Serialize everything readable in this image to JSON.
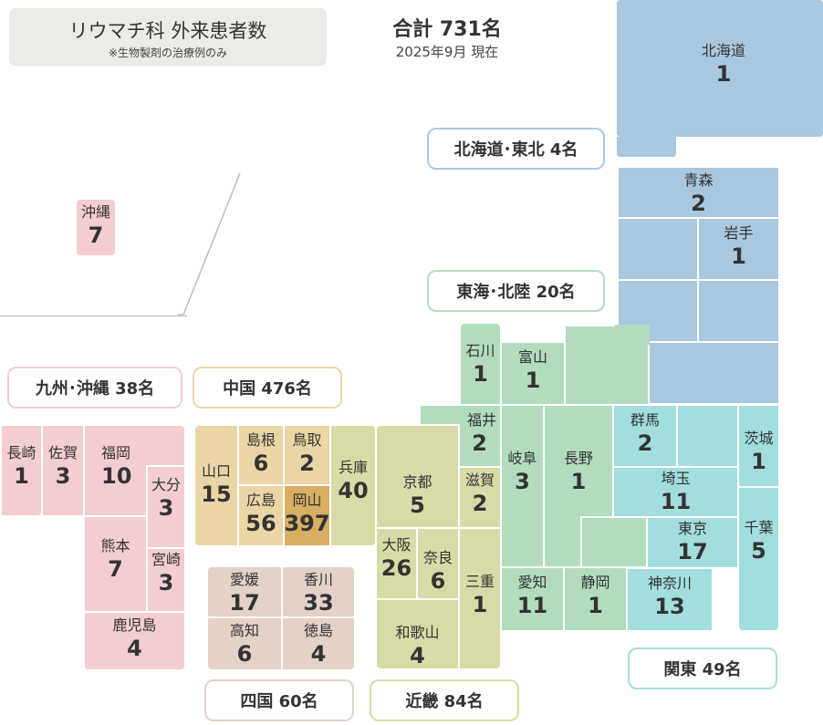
{
  "header": {
    "title": "リウマチ科 外来患者数",
    "note": "※生物製剤の治療例のみ",
    "total": "合計 731名",
    "as_of": "2025年9月 現在"
  },
  "colors": {
    "hokkaido_tohoku": "#a9c8df",
    "kanto": "#a3dedf",
    "tokai_hokuriku": "#b3dcbf",
    "kinki": "#d9dba7",
    "chugoku": "#ead5a5",
    "okayama": "#d7ae62",
    "shikoku": "#e4d1c8",
    "kyushu_okinawa": "#f3cdd0"
  },
  "regions": {
    "hokkaido_tohoku": "北海道･東北 4名",
    "tokai_hokuriku": "東海･北陸 20名",
    "kyushu_okinawa": "九州･沖縄 38名",
    "chugoku": "中国 476名",
    "shikoku": "四国 60名",
    "kinki": "近畿 84名",
    "kanto": "関東 49名"
  },
  "prefectures": {
    "hokkaido": {
      "name": "北海道",
      "count": "1"
    },
    "aomori": {
      "name": "青森",
      "count": "2"
    },
    "iwate": {
      "name": "岩手",
      "count": "1"
    },
    "okinawa": {
      "name": "沖縄",
      "count": "7"
    },
    "ishikawa": {
      "name": "石川",
      "count": "1"
    },
    "toyama": {
      "name": "富山",
      "count": "1"
    },
    "fukui": {
      "name": "福井",
      "count": "2"
    },
    "gifu": {
      "name": "岐阜",
      "count": "3"
    },
    "nagano": {
      "name": "長野",
      "count": "1"
    },
    "gunma": {
      "name": "群馬",
      "count": "2"
    },
    "ibaraki": {
      "name": "茨城",
      "count": "1"
    },
    "saitama": {
      "name": "埼玉",
      "count": "11"
    },
    "tokyo": {
      "name": "東京",
      "count": "17"
    },
    "chiba": {
      "name": "千葉",
      "count": "5"
    },
    "kanagawa": {
      "name": "神奈川",
      "count": "13"
    },
    "aichi": {
      "name": "愛知",
      "count": "11"
    },
    "shizuoka": {
      "name": "静岡",
      "count": "1"
    },
    "mie": {
      "name": "三重",
      "count": "1"
    },
    "shiga": {
      "name": "滋賀",
      "count": "2"
    },
    "kyoto": {
      "name": "京都",
      "count": "5"
    },
    "osaka": {
      "name": "大阪",
      "count": "26"
    },
    "nara": {
      "name": "奈良",
      "count": "6"
    },
    "wakayama": {
      "name": "和歌山",
      "count": "4"
    },
    "hyogo": {
      "name": "兵庫",
      "count": "40"
    },
    "tottori": {
      "name": "鳥取",
      "count": "2"
    },
    "shimane": {
      "name": "島根",
      "count": "6"
    },
    "okayama": {
      "name": "岡山",
      "count": "397"
    },
    "hiroshima": {
      "name": "広島",
      "count": "56"
    },
    "yamaguchi": {
      "name": "山口",
      "count": "15"
    },
    "kagawa": {
      "name": "香川",
      "count": "33"
    },
    "ehime": {
      "name": "愛媛",
      "count": "17"
    },
    "tokushima": {
      "name": "徳島",
      "count": "4"
    },
    "kochi": {
      "name": "高知",
      "count": "6"
    },
    "fukuoka": {
      "name": "福岡",
      "count": "10"
    },
    "saga": {
      "name": "佐賀",
      "count": "3"
    },
    "nagasaki": {
      "name": "長崎",
      "count": "1"
    },
    "oita": {
      "name": "大分",
      "count": "3"
    },
    "kumamoto": {
      "name": "熊本",
      "count": "7"
    },
    "miyazaki": {
      "name": "宮崎",
      "count": "3"
    },
    "kagoshima": {
      "name": "鹿児島",
      "count": "4"
    }
  }
}
